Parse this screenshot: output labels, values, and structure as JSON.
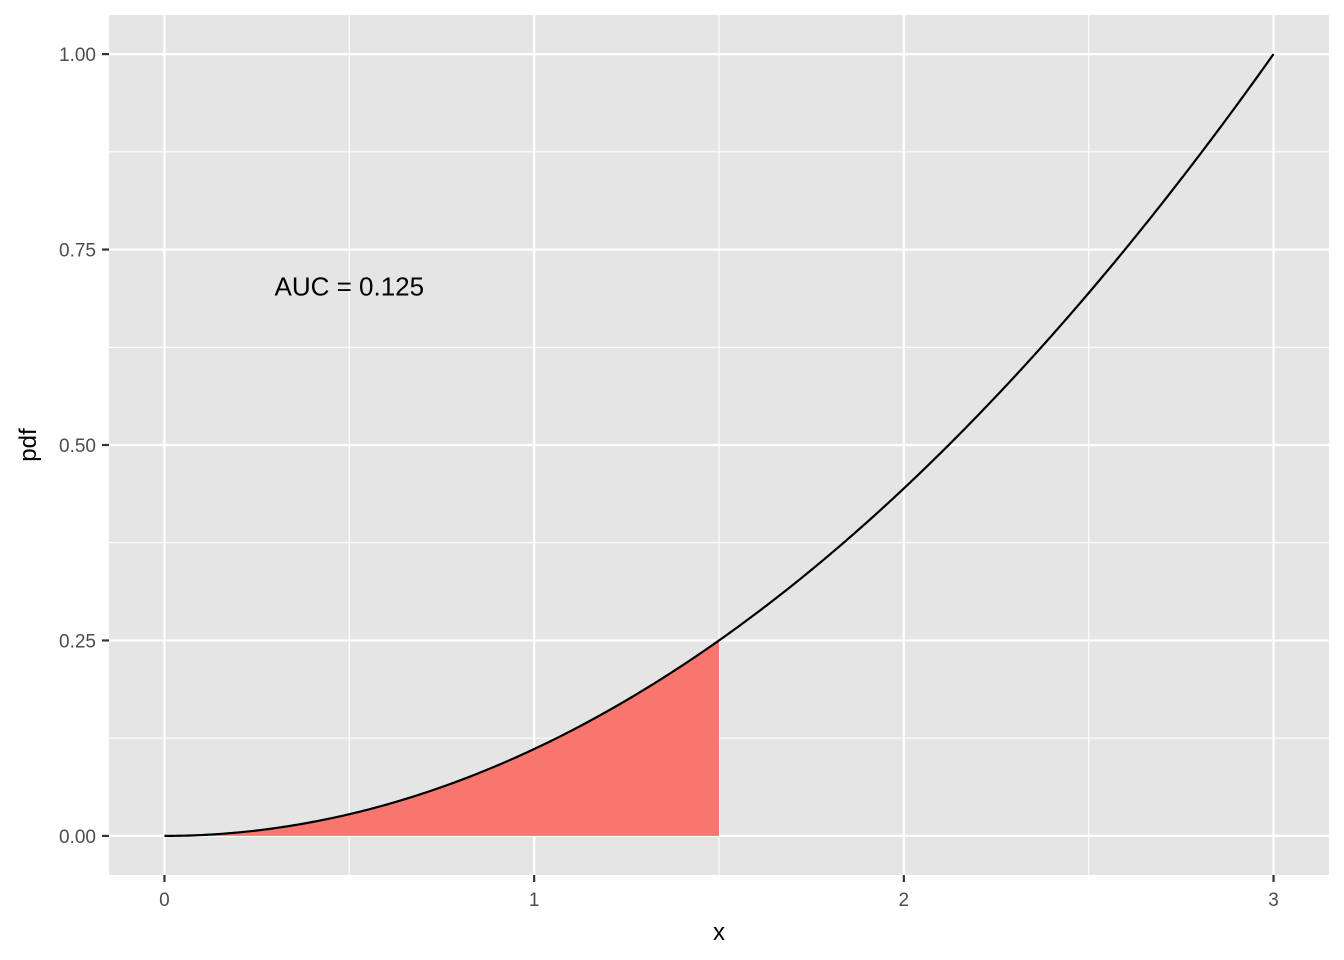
{
  "chart_data": {
    "type": "area",
    "xlabel": "x",
    "ylabel": "pdf",
    "xlim": [
      -0.15,
      3.15
    ],
    "ylim": [
      -0.05,
      1.05
    ],
    "x_ticks": [
      0,
      1,
      2,
      3
    ],
    "x_tick_labels": [
      "0",
      "1",
      "2",
      "3"
    ],
    "x_minor_ticks": [
      0.5,
      1.5,
      2.5
    ],
    "y_ticks": [
      0,
      0.25,
      0.5,
      0.75,
      1.0
    ],
    "y_tick_labels": [
      "0.00",
      "0.25",
      "0.50",
      "0.75",
      "1.00"
    ],
    "y_minor_ticks": [
      0.125,
      0.375,
      0.625,
      0.875
    ],
    "grid": true,
    "curve": {
      "function": "x^2 / 9",
      "x": [
        0,
        0.25,
        0.5,
        0.75,
        1.0,
        1.25,
        1.5,
        1.75,
        2.0,
        2.25,
        2.5,
        2.75,
        3.0
      ],
      "y": [
        0,
        0.0069,
        0.0278,
        0.0625,
        0.1111,
        0.1736,
        0.25,
        0.3403,
        0.4444,
        0.5625,
        0.6944,
        0.8403,
        1.0
      ],
      "x_range": [
        0,
        3
      ],
      "color": "#000000"
    },
    "shaded_region": {
      "x_range": [
        0,
        1.5
      ],
      "color": "#F8766D"
    },
    "annotation": {
      "text": "AUC = 0.125",
      "x": 0.5,
      "y": 0.7
    },
    "colors": {
      "panel_background": "#E5E5E5",
      "grid": "#FFFFFF",
      "fill": "#F8766D",
      "line": "#000000"
    }
  }
}
